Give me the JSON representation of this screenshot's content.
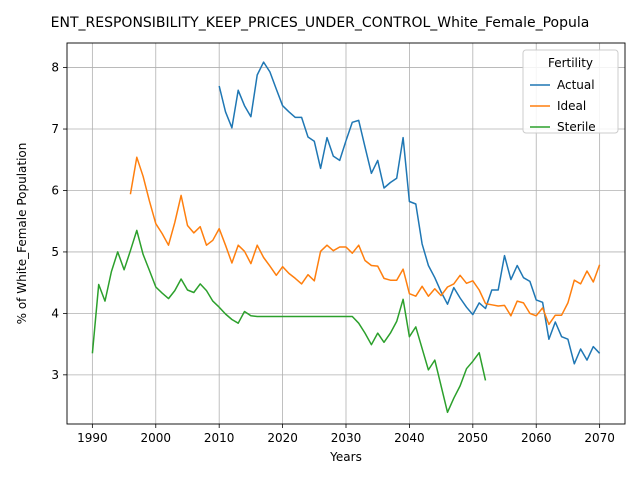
{
  "chart_data": {
    "type": "line",
    "title": "ENT_RESPONSIBILITY_KEEP_PRICES_UNDER_CONTROL_White_Female_Popula",
    "xlabel": "Years",
    "ylabel": "% of White_Female Population",
    "xlim": [
      1986,
      2074
    ],
    "ylim": [
      2.2,
      8.4
    ],
    "xticks": [
      1990,
      2000,
      2010,
      2020,
      2030,
      2040,
      2050,
      2060,
      2070
    ],
    "yticks": [
      3,
      4,
      5,
      6,
      7,
      8
    ],
    "grid": true,
    "legend": {
      "title": "Fertility",
      "position": "top-right"
    },
    "series": [
      {
        "name": "Actual",
        "color": "#1f77b4",
        "x": [
          2010,
          2011,
          2012,
          2013,
          2014,
          2015,
          2016,
          2017,
          2018,
          2019,
          2020,
          2021,
          2022,
          2023,
          2024,
          2025,
          2026,
          2027,
          2028,
          2029,
          2030,
          2031,
          2032,
          2033,
          2034,
          2035,
          2036,
          2037,
          2038,
          2039,
          2040,
          2041,
          2042,
          2043,
          2044,
          2045,
          2046,
          2047,
          2048,
          2049,
          2050,
          2051,
          2052,
          2053,
          2054,
          2055,
          2056,
          2057,
          2058,
          2059,
          2060,
          2061,
          2062,
          2063,
          2064,
          2065,
          2066,
          2067,
          2068,
          2069,
          2070
        ],
        "values": [
          7.7,
          7.28,
          7.02,
          7.63,
          7.38,
          7.2,
          7.88,
          8.09,
          7.93,
          7.65,
          7.38,
          7.28,
          7.19,
          7.19,
          6.87,
          6.8,
          6.36,
          6.86,
          6.56,
          6.49,
          6.81,
          7.11,
          7.14,
          6.71,
          6.28,
          6.49,
          6.04,
          6.13,
          6.2,
          6.86,
          5.82,
          5.78,
          5.13,
          4.78,
          4.58,
          4.35,
          4.15,
          4.42,
          4.25,
          4.1,
          3.98,
          4.17,
          4.08,
          4.38,
          4.38,
          4.94,
          4.55,
          4.78,
          4.58,
          4.52,
          4.22,
          4.18,
          3.58,
          3.86,
          3.62,
          3.58,
          3.18,
          3.42,
          3.24,
          3.46,
          3.35
        ]
      },
      {
        "name": "Ideal",
        "color": "#ff7f0e",
        "x": [
          1996,
          1997,
          1998,
          1999,
          2000,
          2001,
          2002,
          2003,
          2004,
          2005,
          2006,
          2007,
          2008,
          2009,
          2010,
          2011,
          2012,
          2013,
          2014,
          2015,
          2016,
          2017,
          2018,
          2019,
          2020,
          2021,
          2022,
          2023,
          2024,
          2025,
          2026,
          2027,
          2028,
          2029,
          2030,
          2031,
          2032,
          2033,
          2034,
          2035,
          2036,
          2037,
          2038,
          2039,
          2040,
          2041,
          2042,
          2043,
          2044,
          2045,
          2046,
          2047,
          2048,
          2049,
          2050,
          2051,
          2052,
          2053,
          2054,
          2055,
          2056,
          2057,
          2058,
          2059,
          2060,
          2061,
          2062,
          2063,
          2064,
          2065,
          2066,
          2067,
          2068,
          2069,
          2070
        ],
        "values": [
          5.94,
          6.54,
          6.23,
          5.83,
          5.46,
          5.3,
          5.11,
          5.48,
          5.92,
          5.43,
          5.31,
          5.41,
          5.11,
          5.19,
          5.38,
          5.11,
          4.82,
          5.11,
          5.01,
          4.81,
          5.11,
          4.91,
          4.77,
          4.62,
          4.76,
          4.65,
          4.57,
          4.48,
          4.63,
          4.53,
          5.01,
          5.11,
          5.02,
          5.08,
          5.08,
          4.98,
          5.11,
          4.86,
          4.78,
          4.77,
          4.57,
          4.54,
          4.54,
          4.72,
          4.32,
          4.28,
          4.44,
          4.28,
          4.4,
          4.29,
          4.43,
          4.48,
          4.62,
          4.49,
          4.53,
          4.38,
          4.16,
          4.14,
          4.12,
          4.13,
          3.96,
          4.2,
          4.17,
          4.0,
          3.96,
          4.09,
          3.82,
          3.97,
          3.97,
          4.17,
          4.54,
          4.48,
          4.69,
          4.51,
          4.79
        ]
      },
      {
        "name": "Sterile",
        "color": "#2ca02c",
        "x": [
          1990,
          1991,
          1992,
          1993,
          1994,
          1995,
          1996,
          1997,
          1998,
          1999,
          2000,
          2001,
          2002,
          2003,
          2004,
          2005,
          2006,
          2007,
          2008,
          2009,
          2010,
          2011,
          2012,
          2013,
          2014,
          2015,
          2016,
          2017,
          2018,
          2019,
          2020,
          2021,
          2022,
          2023,
          2024,
          2025,
          2026,
          2027,
          2028,
          2029,
          2030,
          2031,
          2032,
          2033,
          2034,
          2035,
          2036,
          2037,
          2038,
          2039,
          2040,
          2041,
          2042,
          2043,
          2044,
          2045,
          2046,
          2047,
          2048,
          2049,
          2050,
          2051,
          2052
        ],
        "values": [
          3.35,
          4.47,
          4.2,
          4.68,
          5.0,
          4.71,
          5.02,
          5.35,
          4.96,
          4.7,
          4.43,
          4.33,
          4.24,
          4.37,
          4.56,
          4.38,
          4.34,
          4.48,
          4.37,
          4.2,
          4.1,
          3.99,
          3.9,
          3.84,
          4.03,
          3.96,
          3.95,
          3.95,
          3.95,
          3.95,
          3.95,
          3.95,
          3.95,
          3.95,
          3.95,
          3.95,
          3.95,
          3.95,
          3.95,
          3.95,
          3.95,
          3.95,
          3.84,
          3.68,
          3.49,
          3.68,
          3.53,
          3.68,
          3.87,
          4.23,
          3.62,
          3.78,
          3.43,
          3.08,
          3.24,
          2.82,
          2.39,
          2.62,
          2.82,
          3.1,
          3.22,
          3.36,
          2.91
        ]
      }
    ]
  }
}
